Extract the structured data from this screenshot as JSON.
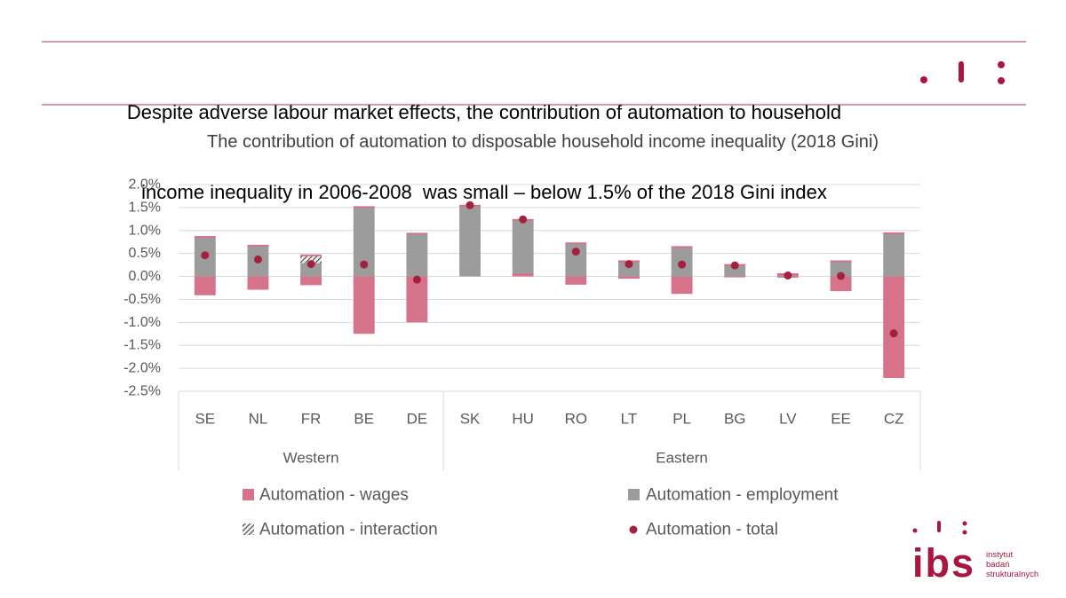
{
  "header": {
    "title_line1": "Despite adverse labour market effects, the contribution of automation to household",
    "title_line2": "income inequality in 2006-2008  was small – below 1.5% of the 2018 Gini index"
  },
  "brand": {
    "accent_color": "#a8173f",
    "rule_color": "#a3375a",
    "logo_word": "ibs",
    "logo_tagline": [
      "instytut",
      "badań",
      "strukturalnych"
    ]
  },
  "chart_data": {
    "type": "bar",
    "stacked": true,
    "title": "The contribution of automation to disposable household income inequality (2018 Gini)",
    "xlabel": "",
    "ylabel": "",
    "ylim": [
      -2.5,
      2.0
    ],
    "y_ticks": [
      2.0,
      1.5,
      1.0,
      0.5,
      0.0,
      -0.5,
      -1.0,
      -1.5,
      -2.0,
      -2.5
    ],
    "y_tick_labels": [
      "2.0%",
      "1.5%",
      "1.0%",
      "0.5%",
      "0.0%",
      "-0.5%",
      "-1.0%",
      "-1.5%",
      "-2.0%",
      "-2.5%"
    ],
    "grid": true,
    "legend_position": "bottom",
    "categories": [
      "SE",
      "NL",
      "FR",
      "BE",
      "DE",
      "SK",
      "HU",
      "RO",
      "LT",
      "PL",
      "BG",
      "LV",
      "EE",
      "CZ"
    ],
    "category_groups": [
      {
        "label": "Western",
        "count": 5
      },
      {
        "label": "Eastern",
        "count": 9
      }
    ],
    "series": [
      {
        "name": "Automation - wages",
        "kind": "bar",
        "color": "#d6728a",
        "values": [
          -0.41,
          -0.29,
          -0.19,
          -1.25,
          -1.0,
          0.0,
          0.07,
          -0.18,
          -0.05,
          -0.38,
          -0.02,
          0.05,
          -0.32,
          -2.21
        ]
      },
      {
        "name": "Automation - employment",
        "kind": "bar",
        "color": "#9c9c9c",
        "values": [
          0.86,
          0.67,
          0.29,
          1.51,
          0.93,
          1.54,
          1.16,
          0.72,
          0.33,
          0.64,
          0.25,
          -0.03,
          0.33,
          0.94
        ]
      },
      {
        "name": "Automation - interaction",
        "kind": "bar",
        "pattern": "hatch",
        "color": "#3a3a3a",
        "values": [
          0.0,
          0.0,
          0.17,
          0.0,
          0.0,
          0.0,
          0.0,
          0.0,
          0.0,
          0.0,
          0.0,
          0.0,
          0.0,
          0.0
        ]
      },
      {
        "name": "Automation - total",
        "kind": "marker",
        "color": "#a3213f",
        "values": [
          0.46,
          0.37,
          0.27,
          0.26,
          -0.07,
          1.55,
          1.24,
          0.54,
          0.27,
          0.26,
          0.24,
          0.02,
          0.01,
          -1.24
        ]
      }
    ]
  }
}
